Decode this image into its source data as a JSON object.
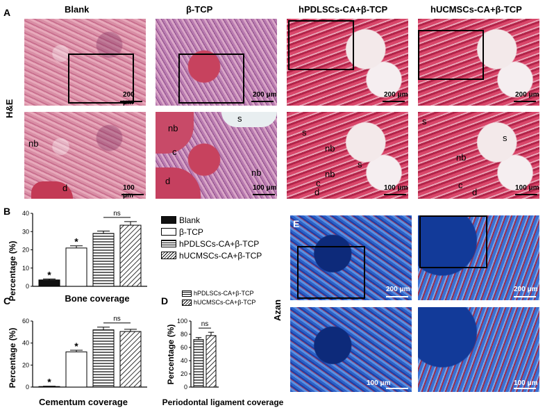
{
  "panel_A": {
    "letter": "A",
    "row_label": "H&E",
    "columns": [
      "Blank",
      "β-TCP",
      "hPDLSCs-CA+β-TCP",
      "hUCMSCs-CA+β-TCP"
    ],
    "scale_top": "200 μm",
    "scale_bottom": "100 μm",
    "bottom_labels": {
      "blank": [
        "nb",
        "d"
      ],
      "tcp": [
        "nb",
        "s",
        "c",
        "d",
        "nb"
      ],
      "hpdl": [
        "s",
        "nb",
        "s",
        "nb",
        "c",
        "d"
      ],
      "hucm": [
        "s",
        "s",
        "nb",
        "c",
        "d"
      ]
    }
  },
  "panel_B": {
    "letter": "B",
    "chart_data": {
      "type": "bar",
      "title": "Bone coverage",
      "ylabel": "Percentage (%)",
      "ylim": [
        0,
        40
      ],
      "yticks": [
        "0",
        "10",
        "20",
        "30",
        "40"
      ],
      "categories": [
        "Blank",
        "β-TCP",
        "hPDLSCs-CA+β-TCP",
        "hUCMSCs-CA+β-TCP"
      ],
      "values": [
        3.5,
        21,
        29,
        33.5
      ],
      "errors": [
        0.5,
        1.2,
        1.3,
        2.0
      ],
      "annotations": [
        "*",
        "*",
        "",
        ""
      ],
      "ns": "ns"
    }
  },
  "legend": {
    "items": [
      "Blank",
      "β-TCP",
      "hPDLSCs-CA+β-TCP",
      "hUCMSCs-CA+β-TCP"
    ]
  },
  "panel_C": {
    "letter": "C",
    "chart_data": {
      "type": "bar",
      "title": "Cementum  coverage",
      "ylabel": "Percentage (%)",
      "ylim": [
        0,
        60
      ],
      "yticks": [
        "0",
        "20",
        "40",
        "60"
      ],
      "categories": [
        "Blank",
        "β-TCP",
        "hPDLSCs-CA+β-TCP",
        "hUCMSCs-CA+β-TCP"
      ],
      "values": [
        0.5,
        32,
        52,
        50.5
      ],
      "errors": [
        0.3,
        1.5,
        2.5,
        2.0
      ],
      "annotations": [
        "*",
        "*",
        "",
        ""
      ],
      "ns": "ns"
    }
  },
  "panel_D": {
    "letter": "D",
    "chart_data": {
      "type": "bar",
      "title": "Periodontal ligament coverage",
      "ylabel": "Percentage (%)",
      "ylim": [
        0,
        100
      ],
      "yticks": [
        "0",
        "20",
        "40",
        "60",
        "80",
        "100"
      ],
      "categories": [
        "hPDLSCs-CA+β-TCP",
        "hUCMSCs-CA+β-TCP"
      ],
      "values": [
        72,
        78
      ],
      "errors": [
        3,
        5
      ],
      "legend": [
        "hPDLSCs-CA+β-TCP",
        "hUCMSCs-CA+β-TCP"
      ],
      "ns": "ns"
    }
  },
  "panel_E": {
    "letter": "E",
    "row_label": "Azan",
    "scale_top": "200 μm",
    "scale_bottom": "100 μm"
  }
}
